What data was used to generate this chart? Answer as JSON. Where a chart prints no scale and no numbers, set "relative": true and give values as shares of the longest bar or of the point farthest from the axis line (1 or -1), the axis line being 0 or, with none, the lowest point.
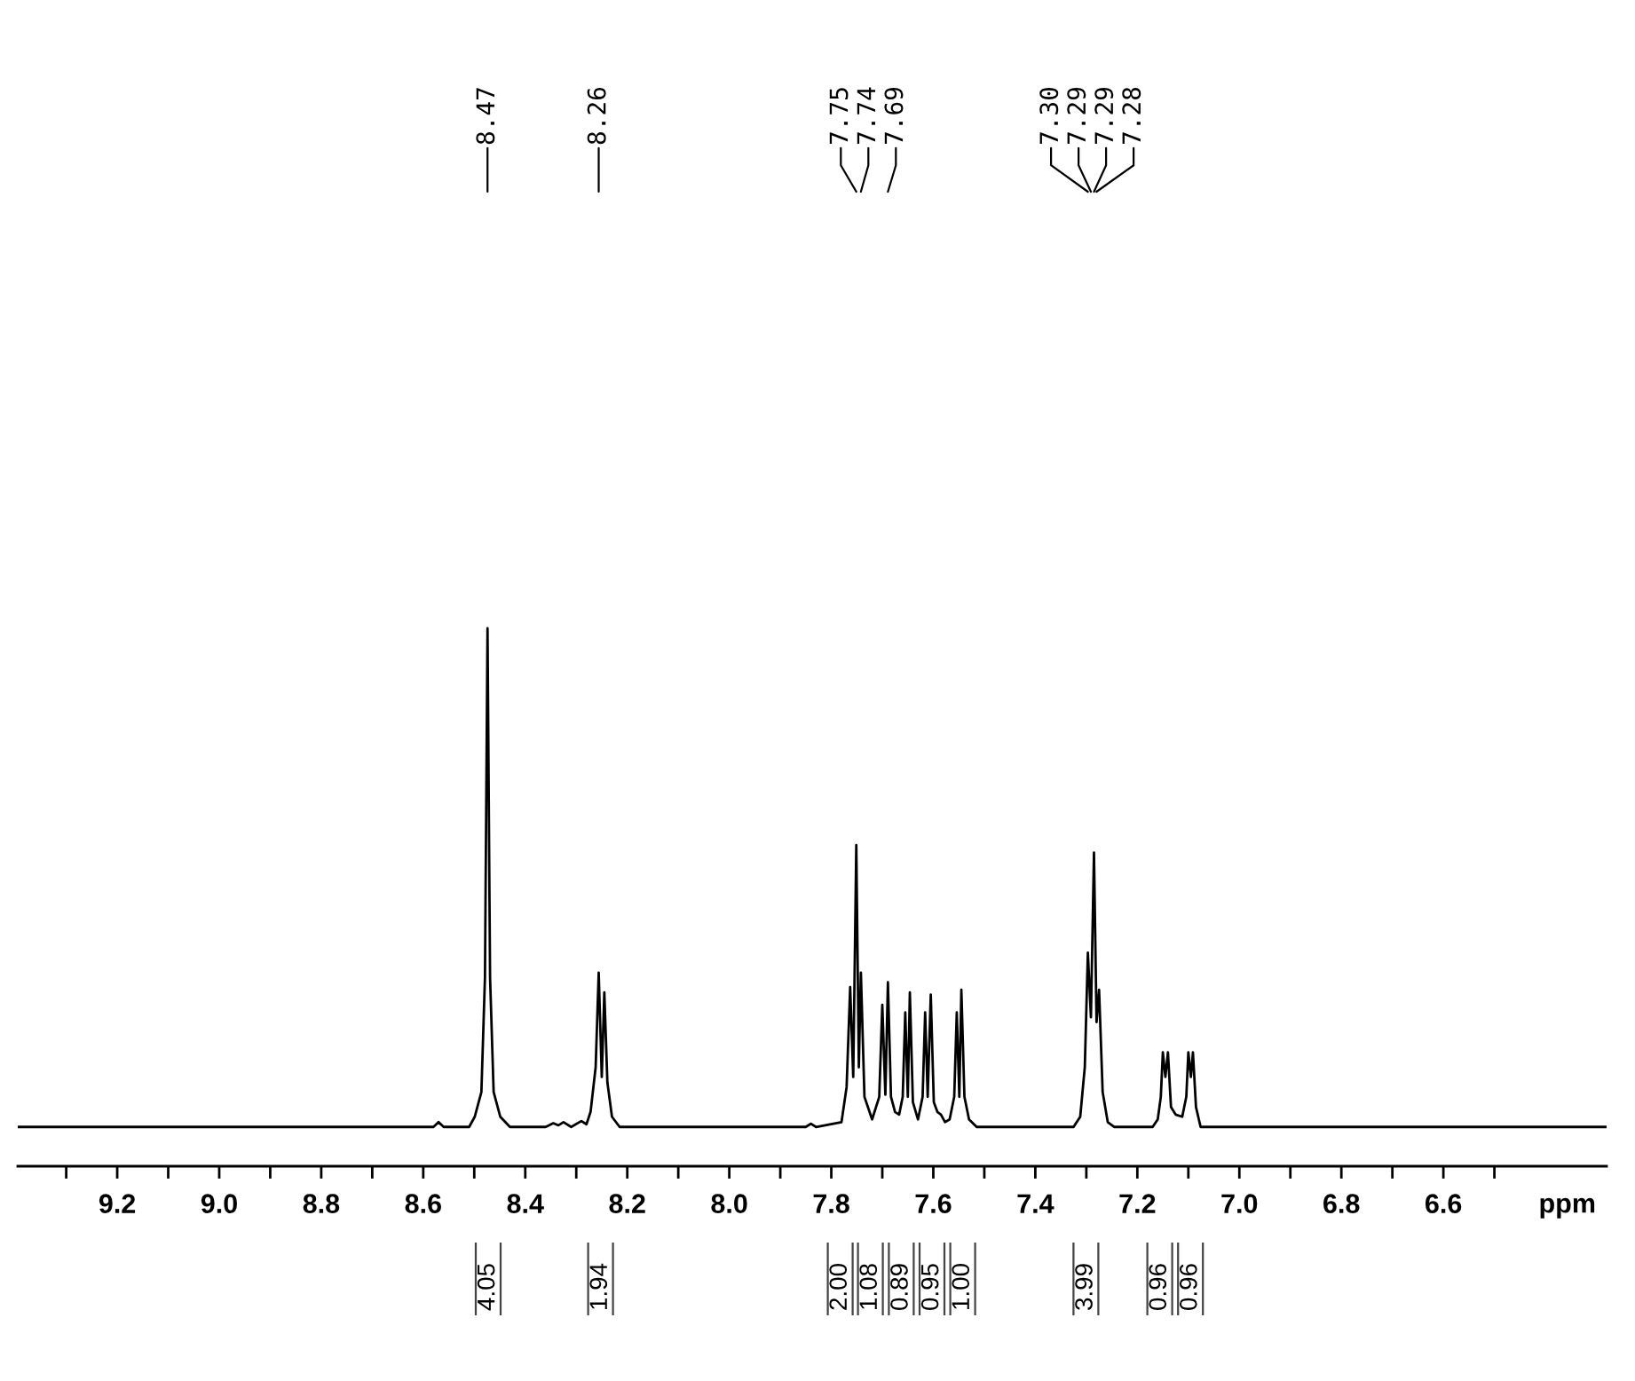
{
  "chart_data": {
    "type": "line",
    "relative": true,
    "xlabel": "ppm",
    "xlim": [
      9.395,
      6.28
    ],
    "xticks": [
      {
        "value": 9.3,
        "label": null
      },
      9.2,
      {
        "value": 9.1,
        "label": null
      },
      {
        "value": 9.0,
        "label": "9.0"
      },
      {
        "value": 8.9,
        "label": null
      },
      8.8,
      {
        "value": 8.7,
        "label": null
      },
      8.6,
      {
        "value": 8.5,
        "label": null
      },
      8.4,
      {
        "value": 8.3,
        "label": null
      },
      8.2,
      {
        "value": 8.1,
        "label": null
      },
      {
        "value": 8.0,
        "label": "8.0"
      },
      {
        "value": 7.9,
        "label": null
      },
      7.8,
      {
        "value": 7.7,
        "label": null
      },
      7.6,
      {
        "value": 7.5,
        "label": null
      },
      7.4,
      {
        "value": 7.3,
        "label": null
      },
      7.2,
      {
        "value": 7.1,
        "label": null
      },
      {
        "value": 7.0,
        "label": "7.0"
      },
      {
        "value": 6.9,
        "label": null
      },
      6.8,
      {
        "value": 6.7,
        "label": null
      },
      6.6,
      {
        "value": 6.5,
        "label": null
      }
    ],
    "series": [
      {
        "color": "#000000",
        "x": [
          9.395,
          8.6,
          8.58,
          8.57,
          8.56,
          8.51,
          8.499,
          8.486,
          8.479,
          8.474,
          8.469,
          8.462,
          8.449,
          8.43,
          8.36,
          8.345,
          8.335,
          8.325,
          8.31,
          8.29,
          8.28,
          8.272,
          8.262,
          8.256,
          8.25,
          8.245,
          8.239,
          8.23,
          8.215,
          7.85,
          7.84,
          7.83,
          7.78,
          7.77,
          7.763,
          7.757,
          7.751,
          7.746,
          7.742,
          7.735,
          7.72,
          7.706,
          7.7,
          7.694,
          7.689,
          7.683,
          7.675,
          7.667,
          7.66,
          7.655,
          7.65,
          7.646,
          7.64,
          7.63,
          7.621,
          7.616,
          7.611,
          7.605,
          7.599,
          7.592,
          7.585,
          7.577,
          7.568,
          7.559,
          7.554,
          7.549,
          7.545,
          7.539,
          7.53,
          7.515,
          7.325,
          7.312,
          7.303,
          7.297,
          7.291,
          7.285,
          7.28,
          7.275,
          7.268,
          7.258,
          7.245,
          7.17,
          7.16,
          7.154,
          7.15,
          7.145,
          7.14,
          7.134,
          7.125,
          7.112,
          7.104,
          7.1,
          7.095,
          7.091,
          7.085,
          7.076,
          6.28
        ],
        "values": [
          0.073,
          0.073,
          0.073,
          0.082,
          0.073,
          0.073,
          0.092,
          0.138,
          0.351,
          1.0,
          0.351,
          0.138,
          0.092,
          0.073,
          0.073,
          0.08,
          0.076,
          0.082,
          0.073,
          0.084,
          0.078,
          0.101,
          0.184,
          0.36,
          0.166,
          0.323,
          0.156,
          0.092,
          0.073,
          0.073,
          0.079,
          0.073,
          0.082,
          0.147,
          0.333,
          0.166,
          0.597,
          0.184,
          0.36,
          0.129,
          0.087,
          0.129,
          0.3,
          0.133,
          0.342,
          0.129,
          0.101,
          0.096,
          0.129,
          0.286,
          0.129,
          0.323,
          0.119,
          0.087,
          0.129,
          0.286,
          0.129,
          0.319,
          0.119,
          0.101,
          0.096,
          0.082,
          0.087,
          0.129,
          0.286,
          0.129,
          0.328,
          0.129,
          0.087,
          0.073,
          0.073,
          0.092,
          0.184,
          0.397,
          0.277,
          0.583,
          0.268,
          0.328,
          0.138,
          0.082,
          0.073,
          0.073,
          0.087,
          0.129,
          0.212,
          0.166,
          0.212,
          0.11,
          0.096,
          0.092,
          0.129,
          0.212,
          0.166,
          0.212,
          0.11,
          0.073,
          0.073
        ]
      }
    ],
    "annotations": [
      {
        "text": "8.47",
        "x": 8.474
      },
      {
        "text": "8.26",
        "x": 8.256
      },
      {
        "text": "7.75",
        "x": 7.751
      },
      {
        "text": "7.74",
        "x": 7.742
      },
      {
        "text": "7.69",
        "x": 7.689
      },
      {
        "text": "7.30",
        "x": 7.297
      },
      {
        "text": "7.29",
        "x": 7.291
      },
      {
        "text": "7.29",
        "x": 7.285
      },
      {
        "text": "7.28",
        "x": 7.28
      },
      "4.05",
      "1.94",
      "2.00",
      "1.08",
      "0.89",
      "0.95",
      "1.00",
      "3.99",
      "0.96",
      "0.96"
    ]
  }
}
